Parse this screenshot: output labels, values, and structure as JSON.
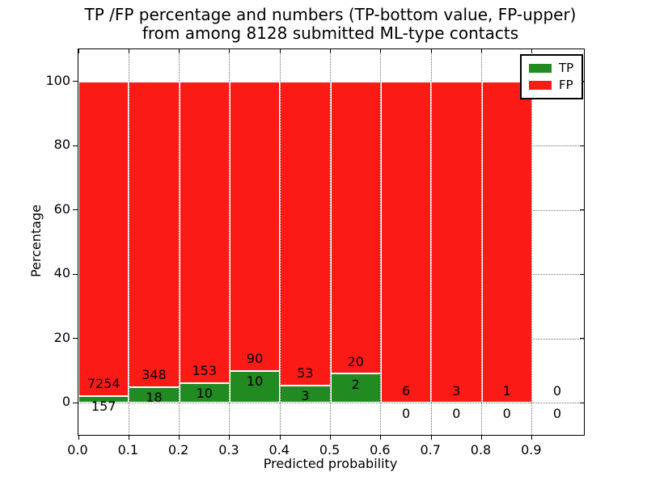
{
  "chart_data": {
    "type": "bar",
    "stacked": true,
    "orientation": "vertical",
    "title": "TP /FP percentage and numbers (TP-bottom value, FP-upper)\nfrom among 8128 submitted ML-type contacts",
    "title_lines": [
      "TP /FP percentage and numbers (TP-bottom value, FP-upper)",
      "from among 8128 submitted ML-type contacts"
    ],
    "xlabel": "Predicted probability",
    "ylabel": "Percentage",
    "total_submitted_contacts": 8128,
    "bin_start": 0.0,
    "bin_width": 0.1,
    "series": [
      {
        "name": "TP",
        "color": "#218a21",
        "counts": [
          157,
          18,
          10,
          10,
          3,
          2,
          0,
          0,
          0,
          0
        ]
      },
      {
        "name": "FP",
        "color": "#fb1b16",
        "counts": [
          7254,
          348,
          153,
          90,
          53,
          20,
          6,
          3,
          1,
          0
        ]
      }
    ],
    "bar_value_mode": "percent_of_bin_total_stacked_to_100",
    "annotation_rule": "FP count above TP count at each bar base",
    "xticks": [
      "0.0",
      "0.1",
      "0.2",
      "0.3",
      "0.4",
      "0.5",
      "0.6",
      "0.7",
      "0.8",
      "0.9"
    ],
    "yticks": [
      "0",
      "20",
      "40",
      "60",
      "80",
      "100"
    ],
    "xlim": [
      0.0,
      1.003
    ],
    "ylim": [
      -10,
      110
    ],
    "grid": "dotted",
    "legend_position": "upper right"
  }
}
